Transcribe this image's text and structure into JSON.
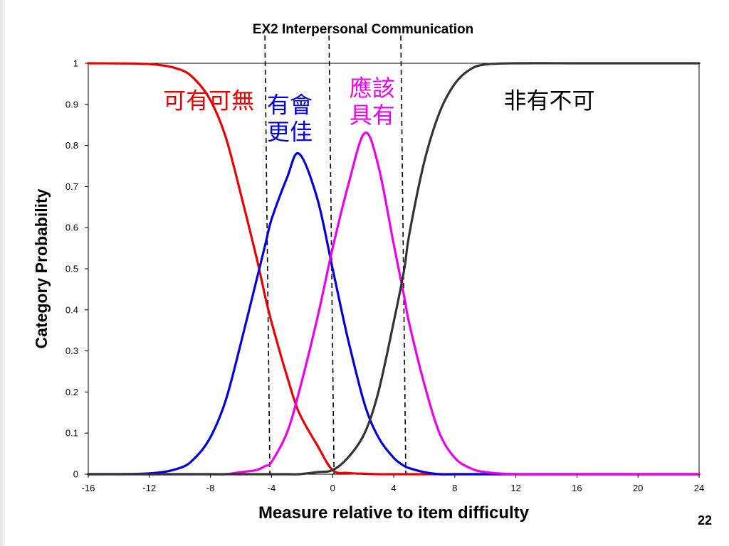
{
  "page_number": "22",
  "chart_data": {
    "type": "line",
    "title": "EX2 Interpersonal Communication",
    "xlabel": "Measure relative to item difficulty",
    "ylabel": "Category Probability",
    "xlim": [
      -16,
      24
    ],
    "ylim": [
      0,
      1
    ],
    "xticks": [
      -16,
      -12,
      -8,
      -4,
      0,
      4,
      8,
      12,
      16,
      20,
      24
    ],
    "yticks": [
      0,
      0.1,
      0.2,
      0.3,
      0.4,
      0.5,
      0.6,
      0.7,
      0.8,
      0.9,
      1
    ],
    "grid": false,
    "x": [
      -16,
      -12,
      -10,
      -9,
      -8,
      -7,
      -6,
      -5,
      -4.4,
      -4,
      -3,
      -2.2,
      -1,
      0,
      1,
      2.1,
      3,
      4,
      4.7,
      5,
      6,
      7,
      8,
      9,
      10,
      12,
      16,
      20,
      24
    ],
    "series": [
      {
        "name": "可有可無",
        "color": "#ee0000",
        "values": [
          1.0,
          0.998,
          0.985,
          0.96,
          0.91,
          0.82,
          0.68,
          0.53,
          0.43,
          0.37,
          0.24,
          0.15,
          0.07,
          0.01,
          0.003,
          0.001,
          0.0,
          0.0,
          0.0,
          0.0,
          0.0,
          0.0,
          0.0,
          0.0,
          0.0,
          0.0,
          0.0,
          0.0,
          0.0
        ]
      },
      {
        "name": "有會更佳",
        "color": "#0000dd",
        "values": [
          0.0,
          0.002,
          0.015,
          0.04,
          0.09,
          0.18,
          0.32,
          0.47,
          0.56,
          0.62,
          0.72,
          0.78,
          0.67,
          0.5,
          0.33,
          0.17,
          0.09,
          0.04,
          0.02,
          0.015,
          0.005,
          0.0,
          0.0,
          0.0,
          0.0,
          0.0,
          0.0,
          0.0,
          0.0
        ]
      },
      {
        "name": "應該具有",
        "color": "#ee00ee",
        "values": [
          0.0,
          0.0,
          0.0,
          0.0,
          0.0,
          0.0,
          0.005,
          0.01,
          0.02,
          0.03,
          0.1,
          0.2,
          0.38,
          0.55,
          0.7,
          0.83,
          0.75,
          0.56,
          0.43,
          0.37,
          0.22,
          0.1,
          0.04,
          0.015,
          0.005,
          0.0,
          0.0,
          0.0,
          0.0
        ]
      },
      {
        "name": "非有不可",
        "color": "#333333",
        "values": [
          0.0,
          0.0,
          0.0,
          0.0,
          0.0,
          0.0,
          0.0,
          0.0,
          0.0,
          0.0,
          0.0,
          0.0,
          0.005,
          0.01,
          0.04,
          0.1,
          0.2,
          0.37,
          0.5,
          0.58,
          0.76,
          0.88,
          0.95,
          0.985,
          0.997,
          1.0,
          1.0,
          1.0,
          1.0
        ]
      }
    ],
    "thresholds": [
      -4.2,
      0,
      4.7
    ],
    "annotations": [
      {
        "text": "可有可無",
        "color": "#ee0000",
        "x": -11.1,
        "y": 0.89
      },
      {
        "line1": "有會",
        "line2": "更佳",
        "color": "#0000dd",
        "x": -4.3,
        "y": 0.88
      },
      {
        "line1": "應該",
        "line2": "具有",
        "color": "#ee00ee",
        "x": 1.1,
        "y": 0.92
      },
      {
        "text": "非有不可",
        "color": "#000000",
        "x": 11.2,
        "y": 0.89
      }
    ]
  }
}
